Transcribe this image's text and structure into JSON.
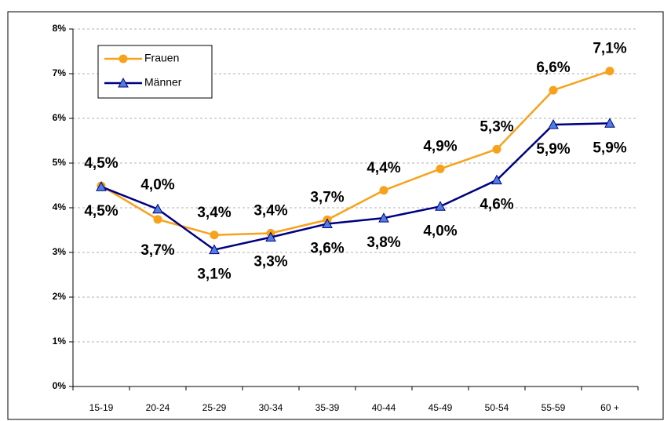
{
  "chart_data": {
    "type": "line",
    "categories": [
      "15-19",
      "20-24",
      "25-29",
      "30-34",
      "35-39",
      "40-44",
      "45-49",
      "50-54",
      "55-59",
      "60 +"
    ],
    "series": [
      {
        "name": "Frauen",
        "color": "#f7a21b",
        "marker": "circle",
        "values": [
          4.49,
          3.74,
          3.39,
          3.43,
          3.73,
          4.39,
          4.87,
          5.31,
          6.63,
          7.06
        ],
        "value_labels": [
          "4,5%",
          "3,7%",
          "3,4%",
          "3,4%",
          "3,7%",
          "4,4%",
          "4,9%",
          "5,3%",
          "6,6%",
          "7,1%"
        ]
      },
      {
        "name": "Männer",
        "color": "#000080",
        "marker": "triangle",
        "values": [
          4.47,
          3.97,
          3.06,
          3.34,
          3.64,
          3.77,
          4.03,
          4.62,
          5.86,
          5.89
        ],
        "value_labels": [
          "4,5%",
          "4,0%",
          "3,1%",
          "3,3%",
          "3,6%",
          "3,8%",
          "4,0%",
          "4,6%",
          "5,9%",
          "5,9%"
        ]
      }
    ],
    "ylim": [
      0,
      8
    ],
    "yticks": [
      {
        "value": 0,
        "label": "0%"
      },
      {
        "value": 1,
        "label": "1%"
      },
      {
        "value": 2,
        "label": "2%"
      },
      {
        "value": 3,
        "label": "3%"
      },
      {
        "value": 4,
        "label": "4%"
      },
      {
        "value": 5,
        "label": "5%"
      },
      {
        "value": 6,
        "label": "6%"
      },
      {
        "value": 7,
        "label": "7%"
      },
      {
        "value": 8,
        "label": "8%"
      }
    ],
    "grid": true,
    "legend": "upper left"
  }
}
